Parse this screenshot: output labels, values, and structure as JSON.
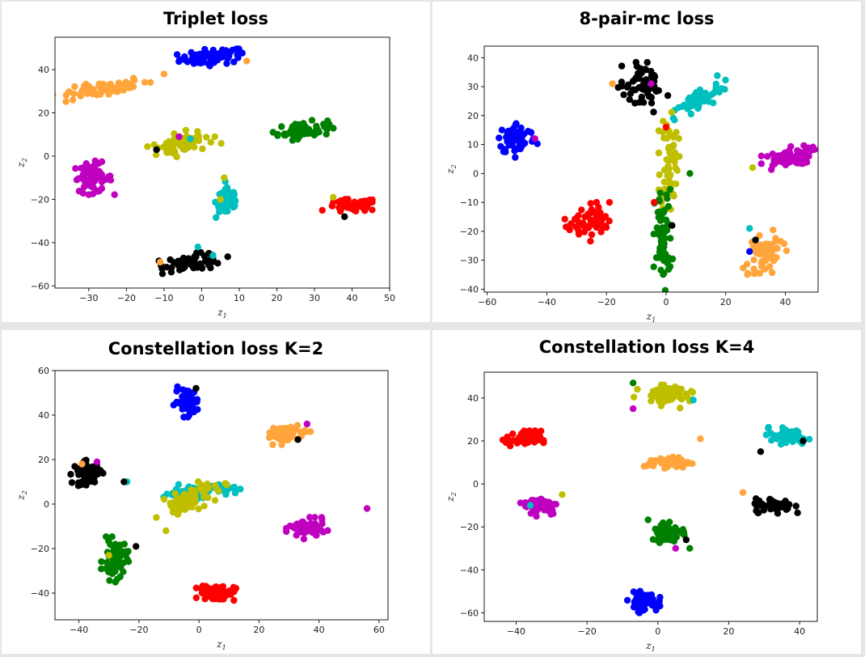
{
  "chart_data": [
    {
      "type": "scatter",
      "title": "Triplet loss",
      "xlabel": "z1",
      "ylabel": "z2",
      "xlim": [
        -39,
        50
      ],
      "ylim": [
        -61,
        55
      ],
      "xticks": [
        -30,
        -20,
        -10,
        0,
        10,
        20,
        30,
        40,
        50
      ],
      "yticks": [
        -60,
        -40,
        -20,
        0,
        20,
        40
      ],
      "grid": false,
      "clusters": [
        {
          "color": "#0000ff",
          "cx": 3,
          "cy": 46,
          "sx": 4.5,
          "sy": 1.8,
          "angle": 8,
          "n": 70
        },
        {
          "color": "#ffa53b",
          "cx": -26,
          "cy": 31,
          "sx": 6,
          "sy": 1.6,
          "angle": 18,
          "n": 65
        },
        {
          "color": "#bfbf00",
          "cx": -5,
          "cy": 6,
          "sx": 4,
          "sy": 2.2,
          "angle": 25,
          "n": 70
        },
        {
          "color": "#008000",
          "cx": 27,
          "cy": 12,
          "sx": 3.5,
          "sy": 1.8,
          "angle": 10,
          "n": 60
        },
        {
          "color": "#bf00bf",
          "cx": -29,
          "cy": -10,
          "sx": 2.6,
          "sy": 3.4,
          "angle": 0,
          "n": 60
        },
        {
          "color": "#00bfbf",
          "cx": 7,
          "cy": -21,
          "sx": 1.6,
          "sy": 4,
          "angle": 0,
          "n": 50
        },
        {
          "color": "#ff0000",
          "cx": 40,
          "cy": -23,
          "sx": 3.5,
          "sy": 1.5,
          "angle": 5,
          "n": 60
        },
        {
          "color": "#000000",
          "cx": -2,
          "cy": -49,
          "sx": 4,
          "sy": 1.8,
          "angle": 8,
          "n": 65
        }
      ],
      "outliers": [
        {
          "x": -12,
          "y": 3,
          "color": "#000000"
        },
        {
          "x": -6,
          "y": 9,
          "color": "#bf00bf"
        },
        {
          "x": -11,
          "y": -49,
          "color": "#ffa53b"
        },
        {
          "x": -1,
          "y": -42,
          "color": "#00bfbf"
        },
        {
          "x": 6,
          "y": -10,
          "color": "#bfbf00"
        },
        {
          "x": 38,
          "y": -28,
          "color": "#000000"
        },
        {
          "x": 12,
          "y": 44,
          "color": "#ffa53b"
        },
        {
          "x": -10,
          "y": 38,
          "color": "#ffa53b"
        },
        {
          "x": 3,
          "y": -46,
          "color": "#00bfbf"
        },
        {
          "x": 35,
          "y": -19,
          "color": "#bfbf00"
        },
        {
          "x": 5,
          "y": -20,
          "color": "#bfbf00"
        },
        {
          "x": -3,
          "y": 8,
          "color": "#00bfbf"
        }
      ]
    },
    {
      "type": "scatter",
      "title": "8-pair-mc loss",
      "xlabel": "z1",
      "ylabel": "z2",
      "xlim": [
        -61,
        51
      ],
      "ylim": [
        -41,
        44
      ],
      "xticks": [
        -60,
        -40,
        -20,
        0,
        20,
        40
      ],
      "yticks": [
        -40,
        -30,
        -20,
        -10,
        0,
        10,
        20,
        30,
        40
      ],
      "grid": false,
      "clusters": [
        {
          "color": "#000000",
          "cx": -8,
          "cy": 31,
          "sx": 4,
          "sy": 3,
          "angle": -40,
          "n": 65
        },
        {
          "color": "#00bfbf",
          "cx": 11,
          "cy": 25,
          "sx": 5,
          "sy": 1.8,
          "angle": 35,
          "n": 55
        },
        {
          "color": "#0000ff",
          "cx": -50,
          "cy": 12,
          "sx": 3.2,
          "sy": 2.8,
          "angle": 0,
          "n": 60
        },
        {
          "color": "#bfbf00",
          "cx": 1,
          "cy": 5,
          "sx": 1.5,
          "sy": 9,
          "angle": 0,
          "n": 60
        },
        {
          "color": "#bf00bf",
          "cx": 40,
          "cy": 5,
          "sx": 4.5,
          "sy": 1.6,
          "angle": 15,
          "n": 60
        },
        {
          "color": "#ff0000",
          "cx": -26,
          "cy": -17,
          "sx": 3.5,
          "sy": 2.8,
          "angle": 20,
          "n": 60
        },
        {
          "color": "#008000",
          "cx": -1,
          "cy": -22,
          "sx": 1.4,
          "sy": 8,
          "angle": 0,
          "n": 70
        },
        {
          "color": "#ffa53b",
          "cx": 33,
          "cy": -28,
          "sx": 2.5,
          "sy": 4,
          "angle": -30,
          "n": 55
        }
      ],
      "outliers": [
        {
          "x": -19,
          "y": -10,
          "color": "#ff0000"
        },
        {
          "x": -44,
          "y": 12,
          "color": "#bf00bf"
        },
        {
          "x": 28,
          "y": -27,
          "color": "#0000ff"
        },
        {
          "x": 28,
          "y": -19,
          "color": "#00bfbf"
        },
        {
          "x": 30,
          "y": -23,
          "color": "#000000"
        },
        {
          "x": -18,
          "y": 31,
          "color": "#ffa53b"
        },
        {
          "x": 29,
          "y": 2,
          "color": "#bfbf00"
        },
        {
          "x": -4,
          "y": -10,
          "color": "#ff0000"
        },
        {
          "x": 8,
          "y": 0,
          "color": "#008000"
        },
        {
          "x": 2,
          "y": -18,
          "color": "#000000"
        },
        {
          "x": 0,
          "y": 16,
          "color": "#ff0000"
        },
        {
          "x": -5,
          "y": 31,
          "color": "#bf00bf"
        }
      ]
    },
    {
      "type": "scatter",
      "title": "Constellation loss K=2",
      "xlabel": "z1",
      "ylabel": "z2",
      "xlim": [
        -48,
        63
      ],
      "ylim": [
        -52,
        60
      ],
      "xticks": [
        -40,
        -20,
        0,
        20,
        40,
        60
      ],
      "yticks": [
        -40,
        -20,
        0,
        20,
        40,
        60
      ],
      "grid": false,
      "clusters": [
        {
          "color": "#0000ff",
          "cx": -4,
          "cy": 46,
          "sx": 2,
          "sy": 3,
          "angle": 0,
          "n": 55
        },
        {
          "color": "#ffa53b",
          "cx": 30,
          "cy": 32,
          "sx": 3,
          "sy": 1.8,
          "angle": 20,
          "n": 55
        },
        {
          "color": "#000000",
          "cx": -37,
          "cy": 14,
          "sx": 2.5,
          "sy": 2.5,
          "angle": 0,
          "n": 55
        },
        {
          "color": "#00bfbf",
          "cx": 0,
          "cy": 6,
          "sx": 6,
          "sy": 1.5,
          "angle": 5,
          "n": 55
        },
        {
          "color": "#bfbf00",
          "cx": -3,
          "cy": 2,
          "sx": 6,
          "sy": 2.2,
          "angle": 35,
          "n": 70
        },
        {
          "color": "#bf00bf",
          "cx": 36,
          "cy": -11,
          "sx": 3,
          "sy": 2.2,
          "angle": 0,
          "n": 60
        },
        {
          "color": "#008000",
          "cx": -28,
          "cy": -25,
          "sx": 2,
          "sy": 4.5,
          "angle": 0,
          "n": 60
        },
        {
          "color": "#ff0000",
          "cx": 6,
          "cy": -40,
          "sx": 3,
          "sy": 1.8,
          "angle": 0,
          "n": 60
        }
      ],
      "outliers": [
        {
          "x": 56,
          "y": -2,
          "color": "#bf00bf"
        },
        {
          "x": -24,
          "y": 10,
          "color": "#00bfbf"
        },
        {
          "x": -25,
          "y": 10,
          "color": "#000000"
        },
        {
          "x": -30,
          "y": -23,
          "color": "#bfbf00"
        },
        {
          "x": -21,
          "y": -19,
          "color": "#000000"
        },
        {
          "x": -39,
          "y": 18,
          "color": "#ffa53b"
        },
        {
          "x": -34,
          "y": 19,
          "color": "#bf00bf"
        },
        {
          "x": 33,
          "y": 29,
          "color": "#000000"
        },
        {
          "x": 36,
          "y": 36,
          "color": "#bf00bf"
        },
        {
          "x": -11,
          "y": -12,
          "color": "#bfbf00"
        },
        {
          "x": -1,
          "y": 52,
          "color": "#000000"
        },
        {
          "x": 8,
          "y": -37,
          "color": "#ff0000"
        }
      ]
    },
    {
      "type": "scatter",
      "title": "Constellation loss K=4",
      "xlabel": "z1",
      "ylabel": "z2",
      "xlim": [
        -49,
        45
      ],
      "ylim": [
        -64,
        52
      ],
      "xticks": [
        -40,
        -20,
        0,
        20,
        40
      ],
      "yticks": [
        -60,
        -40,
        -20,
        0,
        20,
        40
      ],
      "grid": false,
      "clusters": [
        {
          "color": "#bfbf00",
          "cx": 2,
          "cy": 42,
          "sx": 3.5,
          "sy": 2.5,
          "angle": -15,
          "n": 60
        },
        {
          "color": "#ff0000",
          "cx": -38,
          "cy": 21,
          "sx": 2.5,
          "sy": 1.8,
          "angle": 0,
          "n": 55
        },
        {
          "color": "#00bfbf",
          "cx": 37,
          "cy": 22,
          "sx": 2.8,
          "sy": 1.8,
          "angle": -10,
          "n": 55
        },
        {
          "color": "#ffa53b",
          "cx": 3,
          "cy": 10,
          "sx": 3,
          "sy": 1.2,
          "angle": 0,
          "n": 55
        },
        {
          "color": "#bf00bf",
          "cx": -33,
          "cy": -10,
          "sx": 2.5,
          "sy": 2.2,
          "angle": 0,
          "n": 60
        },
        {
          "color": "#000000",
          "cx": 33,
          "cy": -10,
          "sx": 2.8,
          "sy": 1.6,
          "angle": 0,
          "n": 60
        },
        {
          "color": "#008000",
          "cx": 3,
          "cy": -22,
          "sx": 2.5,
          "sy": 2.5,
          "angle": 0,
          "n": 55
        },
        {
          "color": "#0000ff",
          "cx": -4,
          "cy": -55,
          "sx": 2,
          "sy": 2.2,
          "angle": 0,
          "n": 55
        }
      ],
      "outliers": [
        {
          "x": 12,
          "y": 21,
          "color": "#ffa53b"
        },
        {
          "x": 24,
          "y": -4,
          "color": "#ffa53b"
        },
        {
          "x": 9,
          "y": -30,
          "color": "#008000"
        },
        {
          "x": 5,
          "y": -30,
          "color": "#bf00bf"
        },
        {
          "x": -36,
          "y": -10,
          "color": "#00bfbf"
        },
        {
          "x": -27,
          "y": -5,
          "color": "#bfbf00"
        },
        {
          "x": -7,
          "y": 35,
          "color": "#bf00bf"
        },
        {
          "x": 10,
          "y": 39,
          "color": "#00bfbf"
        },
        {
          "x": -7,
          "y": 47,
          "color": "#008000"
        },
        {
          "x": 29,
          "y": 15,
          "color": "#000000"
        },
        {
          "x": 41,
          "y": 20,
          "color": "#000000"
        },
        {
          "x": 8,
          "y": -26,
          "color": "#000000"
        }
      ]
    }
  ]
}
